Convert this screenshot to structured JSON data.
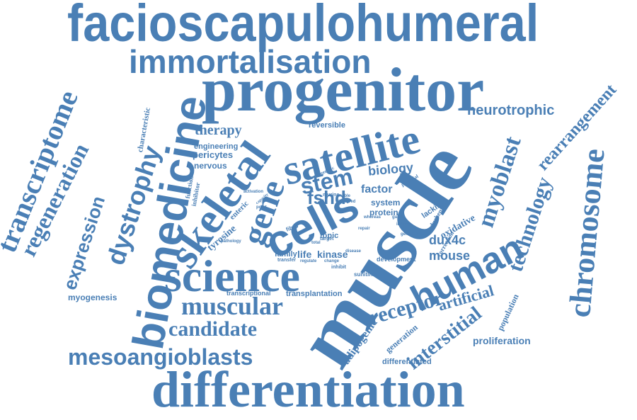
{
  "colors": {
    "word": "#4a7fb5",
    "background": "#ffffff"
  },
  "words": {
    "facioscapulohumeral": "facioscapulohumeral",
    "immortalisation": "immortalisation",
    "progenitor": "progenitor",
    "satellite": "satellite",
    "muscle": "muscle",
    "cells": "cells",
    "biomedicine": "biomedicine",
    "skeletal": "skeletal",
    "gene": "gene",
    "science": "science",
    "differentiation": "differentiation",
    "transcriptome": "transcriptome",
    "regeneration": "regeneration",
    "expression": "expression",
    "dystrophy": "dystrophy",
    "muscular": "muscular",
    "candidate": "candidate",
    "mesoangioblasts": "mesoangioblasts",
    "human": "human",
    "myoblast": "myoblast",
    "technology": "technology",
    "chromosome": "chromosome",
    "rearrangement": "rearrangement",
    "neurotrophic": "neurotrophic",
    "receptor": "receptor",
    "interstitial": "interstitial",
    "artificial": "artificial",
    "stem": "stem",
    "fshd": "fshd",
    "biology": "biology",
    "factor": "factor",
    "therapy": "therapy",
    "myogenesis": "myogenesis",
    "adipogenic": "adipogenic",
    "proliferation": "proliferation",
    "population": "population",
    "generation": "generation",
    "differentiated": "differentiated",
    "transplantation": "transplantation",
    "transcriptional": "transcriptional",
    "mouse": "mouse",
    "dux4c": "dux4c",
    "oxidative": "oxidative",
    "kinase": "kinase",
    "life": "life",
    "family": "family",
    "tyrosine": "tyrosine",
    "enteric": "enteric",
    "topic": "topic",
    "system": "system",
    "protein": "protein",
    "lacking": "lacking",
    "duchenne": "duchenne",
    "correction": "correction",
    "development": "development",
    "sunitinib": "sunitinib",
    "reversible": "reversible",
    "engineering": "engineering",
    "pericytes": "pericytes",
    "nervous": "nervous",
    "characteristic": "characteristic",
    "function": "function",
    "inhibitor": "inhibitor",
    "activation": "activation",
    "genetic": "genetic",
    "murine": "murine",
    "enable": "enable",
    "potential": "potential",
    "fibro": "fibro",
    "target": "target",
    "transfer": "transfer",
    "regulate": "regulate",
    "change": "change",
    "inhibit": "inhibit",
    "pathology": "pathology",
    "total": "total",
    "disease": "disease",
    "genomic": "genomic",
    "involved": "involved",
    "induce": "induce",
    "point": "point",
    "capacity": "capacity",
    "whereas": "whereas",
    "guide": "guide",
    "repair": "repair"
  }
}
